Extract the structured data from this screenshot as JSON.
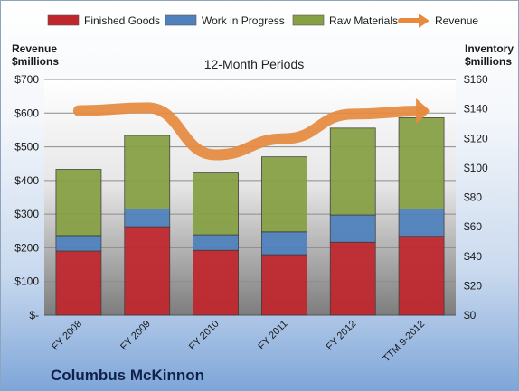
{
  "chart_data": {
    "type": "bar",
    "subtitle": "12-Month Periods",
    "company": "Columbus McKinnon",
    "categories": [
      "FY 2008",
      "FY 2009",
      "FY 2010",
      "FY 2011",
      "FY 2012",
      "TTM 9-2012"
    ],
    "left_axis": {
      "label_line1": "Revenue",
      "label_line2": "$millions",
      "range": [
        0,
        700
      ],
      "ticks": [
        {
          "v": 0,
          "t": "$-"
        },
        {
          "v": 100,
          "t": "$100"
        },
        {
          "v": 200,
          "t": "$200"
        },
        {
          "v": 300,
          "t": "$300"
        },
        {
          "v": 400,
          "t": "$400"
        },
        {
          "v": 500,
          "t": "$500"
        },
        {
          "v": 600,
          "t": "$600"
        },
        {
          "v": 700,
          "t": "$700"
        }
      ]
    },
    "right_axis": {
      "label_line1": "Inventory",
      "label_line2": "$millions",
      "range": [
        0,
        160
      ],
      "ticks": [
        {
          "v": 0,
          "t": "$0"
        },
        {
          "v": 20,
          "t": "$20"
        },
        {
          "v": 40,
          "t": "$40"
        },
        {
          "v": 60,
          "t": "$60"
        },
        {
          "v": 80,
          "t": "$80"
        },
        {
          "v": 100,
          "t": "$100"
        },
        {
          "v": 120,
          "t": "$120"
        },
        {
          "v": 140,
          "t": "$140"
        },
        {
          "v": 160,
          "t": "$160"
        }
      ]
    },
    "stacked_series": [
      {
        "name": "Finished Goods",
        "color": "#c0272d",
        "values": [
          43.5,
          60,
          44,
          41,
          49.5,
          53.5
        ]
      },
      {
        "name": "Work in Progress",
        "color": "#4f81bd",
        "values": [
          10.5,
          12,
          10.5,
          15.5,
          18.5,
          18.5
        ]
      },
      {
        "name": "Raw Materials",
        "color": "#86a043",
        "values": [
          45,
          50,
          42,
          51,
          59,
          62
        ]
      }
    ],
    "line_series": {
      "name": "Revenue",
      "color": "#e68a3e",
      "axis": "left",
      "values": [
        607,
        616,
        476,
        524,
        597,
        606
      ]
    },
    "grid": true,
    "legend_position": "top"
  }
}
